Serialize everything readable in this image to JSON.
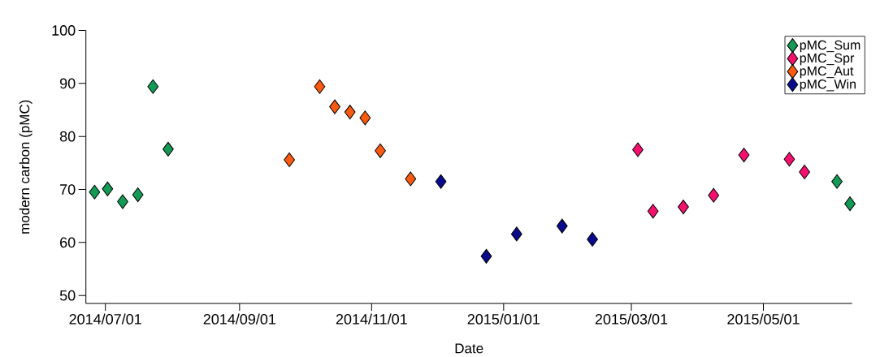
{
  "chart_data": {
    "type": "scatter",
    "xlabel": "Date",
    "ylabel": "modern carbon (pMC)",
    "xlim": [
      "2014-06-22",
      "2015-06-11"
    ],
    "ylim": [
      48.5,
      100
    ],
    "xticks": [
      {
        "value": "2014-07-01",
        "label": "2014/07/01"
      },
      {
        "value": "2014-09-01",
        "label": "2014/09/01"
      },
      {
        "value": "2014-11-01",
        "label": "2014/11/01"
      },
      {
        "value": "2015-01-01",
        "label": "2015/01/01"
      },
      {
        "value": "2015-03-01",
        "label": "2015/03/01"
      },
      {
        "value": "2015-05-01",
        "label": "2015/05/01"
      }
    ],
    "yticks": [
      50,
      60,
      70,
      80,
      90,
      100
    ],
    "marker": "diamond",
    "legend": "top right",
    "series": [
      {
        "name": "pMC_Sum",
        "color": "#139a55",
        "x": [
          "2014-06-26",
          "2014-07-02",
          "2014-07-09",
          "2014-07-16",
          "2014-07-23",
          "2014-07-30",
          "2015-06-04",
          "2015-06-10"
        ],
        "values": [
          69.5,
          70.1,
          67.7,
          69.0,
          89.4,
          77.6,
          71.5,
          67.3
        ]
      },
      {
        "name": "pMC_Spr",
        "color": "#f5106e",
        "x": [
          "2015-03-04",
          "2015-03-11",
          "2015-03-25",
          "2015-04-08",
          "2015-04-22",
          "2015-05-13",
          "2015-05-20"
        ],
        "values": [
          77.5,
          65.9,
          66.7,
          68.9,
          76.5,
          75.7,
          73.3
        ]
      },
      {
        "name": "pMC_Aut",
        "color": "#fa5a0f",
        "x": [
          "2014-09-24",
          "2014-10-08",
          "2014-10-15",
          "2014-10-22",
          "2014-10-29",
          "2014-11-05",
          "2014-11-19"
        ],
        "values": [
          75.6,
          89.4,
          85.6,
          84.6,
          83.5,
          77.3,
          72.0
        ]
      },
      {
        "name": "pMC_Win",
        "color": "#0a0a8c",
        "x": [
          "2014-12-03",
          "2014-12-24",
          "2015-01-07",
          "2015-01-28",
          "2015-02-11"
        ],
        "values": [
          71.5,
          57.4,
          61.6,
          63.1,
          60.6
        ]
      }
    ]
  }
}
